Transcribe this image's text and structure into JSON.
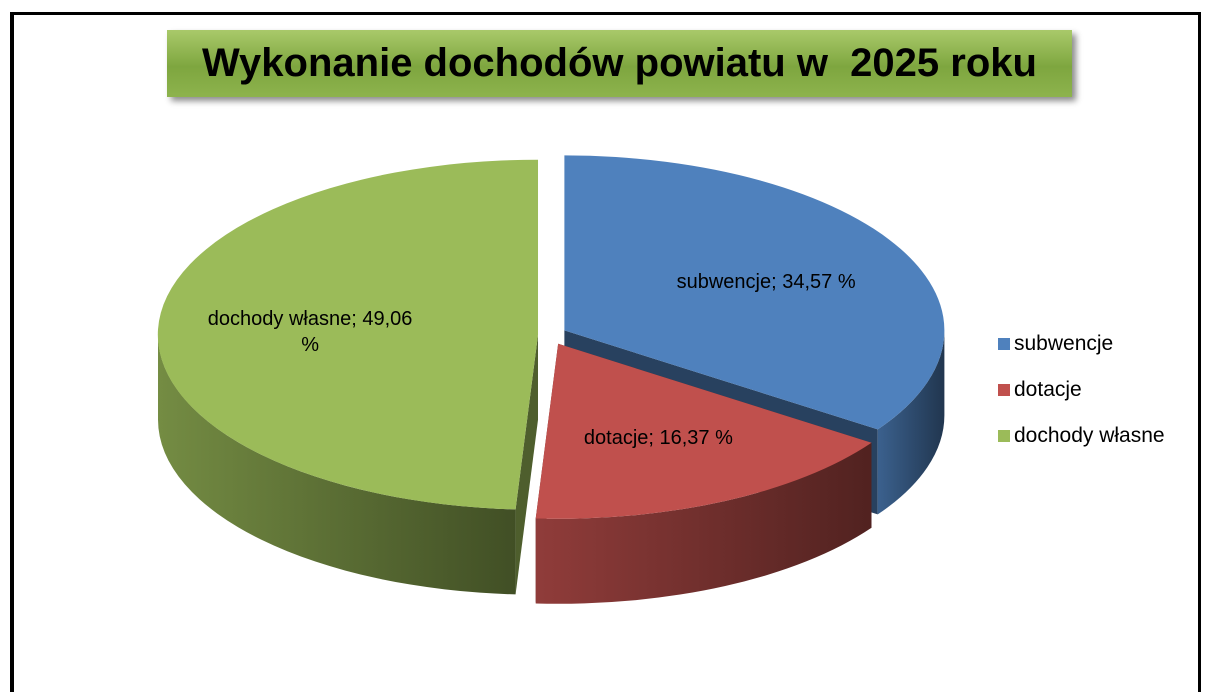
{
  "chart_data": {
    "type": "pie",
    "title": "Wykonanie dochodów powiatu w  2025 roku",
    "categories": [
      "subwencje",
      "dotacje",
      "dochody własne"
    ],
    "values": [
      34.57,
      16.37,
      49.06
    ],
    "value_labels": [
      "subwencje; 34,57 %",
      "dotacje; 16,37 %",
      "dochody własne; 49,06 %"
    ],
    "colors": [
      "#4f81bd",
      "#c0504d",
      "#9bbb59"
    ],
    "legend": "right"
  }
}
